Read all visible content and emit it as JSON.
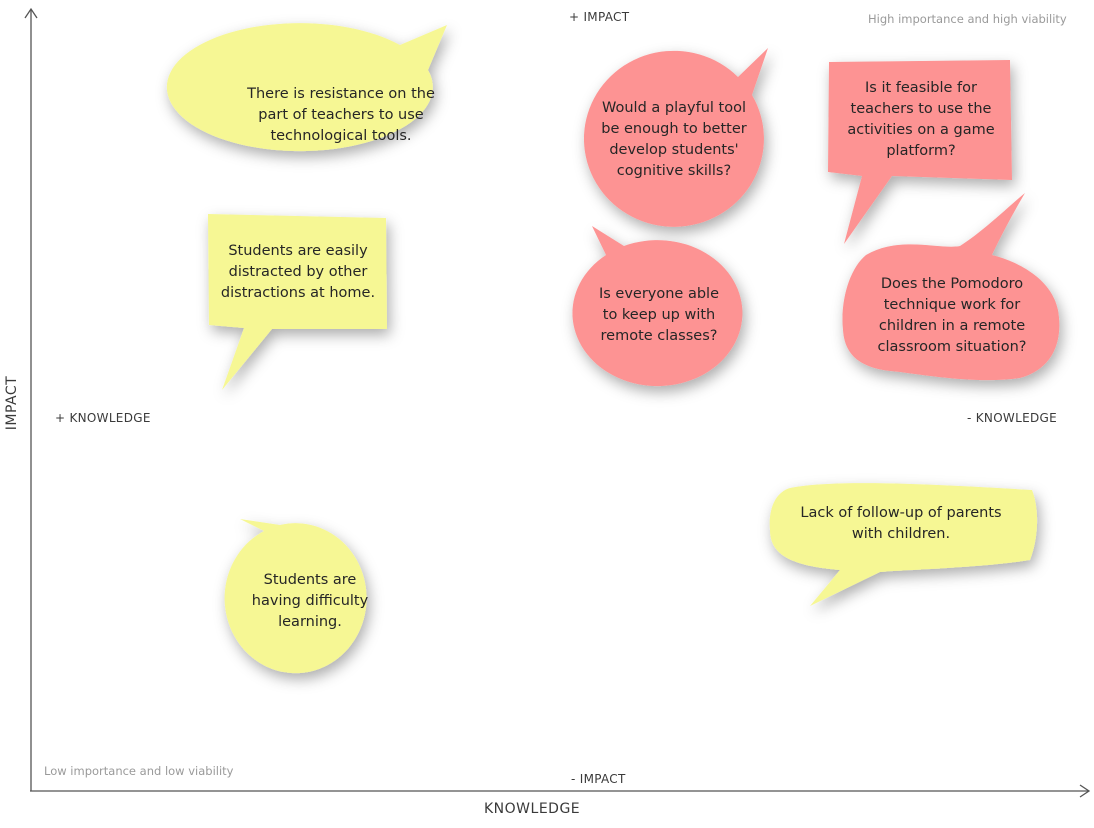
{
  "axes": {
    "x_title": "KNOWLEDGE",
    "y_title": "IMPACT",
    "top_label": "+ IMPACT",
    "bottom_label": "- IMPACT",
    "left_label": "+ KNOWLEDGE",
    "right_label": "- KNOWLEDGE"
  },
  "corners": {
    "top_right": "High importance and high viability",
    "bottom_left": "Low importance and low viability"
  },
  "colors": {
    "yellow_note": "#f6f794",
    "red_note": "#fd9393",
    "axis_green": "#8fd46a",
    "axis_yellow": "#f2f298",
    "axis_red": "#ef4040",
    "axis_line": "#555555"
  },
  "notes": {
    "resistance": "There is resistance on the part of teachers to use technological tools.",
    "distracted": "Students are easily distracted by other distractions at home.",
    "difficulty": "Students are having difficulty learning.",
    "playful": "Would a playful tool be enough to better develop students' cognitive skills?",
    "feasible": "Is it feasible for teachers to use the activities on a game platform?",
    "keep_up": "Is everyone able to keep up with remote classes?",
    "pomodoro": "Does the Pomodoro technique work for children in a remote classroom situation?",
    "follow_up": "Lack of follow-up of parents with children."
  }
}
